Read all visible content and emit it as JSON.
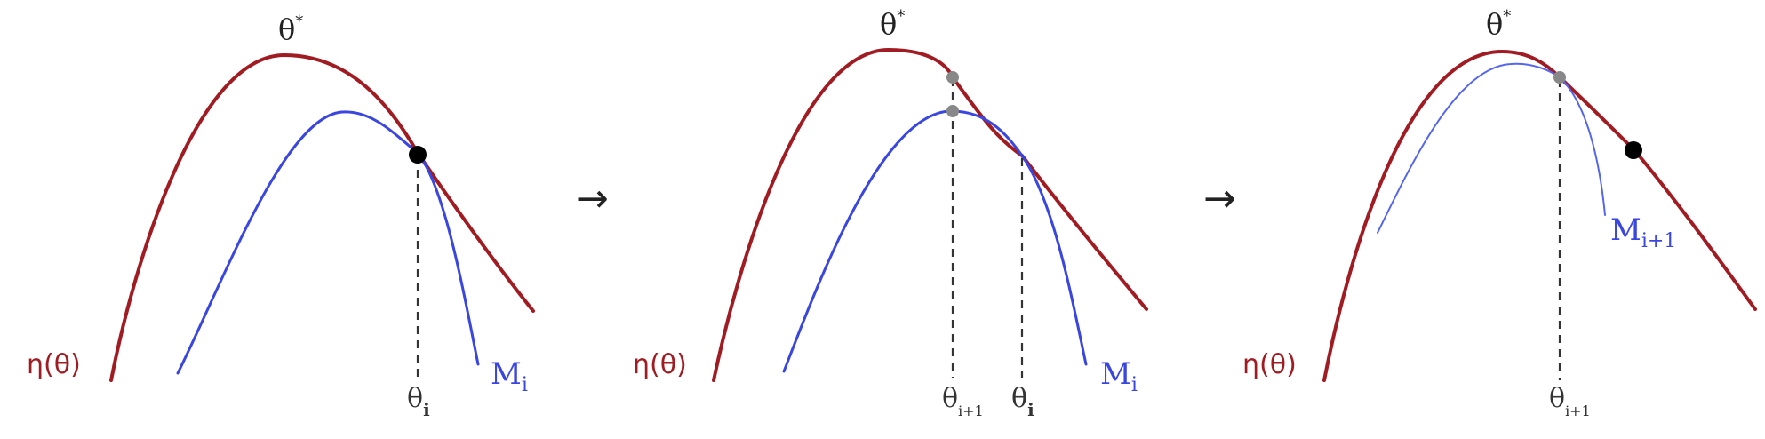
{
  "colors": {
    "eta_curve": "#a01c22",
    "model_curve": "#3a46e0",
    "dashed_line": "#333333",
    "current_point": "#000000",
    "projection_point": "#888888"
  },
  "panels": [
    {
      "eta_label": "η(θ)",
      "optimum_label_base": "θ",
      "optimum_label_sup": "*",
      "model_label_base": "M",
      "model_label_sub": "i",
      "x_labels": [
        {
          "base": "θ",
          "sub": "i"
        }
      ]
    },
    {
      "eta_label": "η(θ)",
      "optimum_label_base": "θ",
      "optimum_label_sup": "*",
      "model_label_base": "M",
      "model_label_sub": "i",
      "x_labels": [
        {
          "base": "θ",
          "sub": "i+1"
        },
        {
          "base": "θ",
          "sub": "i"
        }
      ]
    },
    {
      "eta_label": "η(θ)",
      "optimum_label_base": "θ",
      "optimum_label_sup": "*",
      "model_label_base": "M",
      "model_label_sub": "i+1",
      "x_labels": [
        {
          "base": "θ",
          "sub": "i+1"
        }
      ]
    }
  ],
  "arrows": [
    "→",
    "→"
  ]
}
